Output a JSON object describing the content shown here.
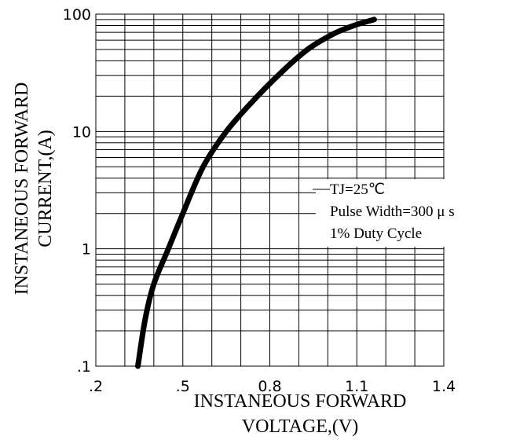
{
  "chart_data": {
    "type": "line",
    "x_scale": "linear",
    "y_scale": "log",
    "xlim": [
      0.2,
      1.4
    ],
    "ylim": [
      0.1,
      100
    ],
    "grid": true,
    "xlabel": [
      "INSTANEOUS FORWARD",
      "VOLTAGE,(V)"
    ],
    "ylabel": [
      "INSTANEOUS FORWARD",
      "CURRENT,(A)"
    ],
    "x_tick_labels": [
      {
        "value": 0.2,
        "label": ".2"
      },
      {
        "value": 0.5,
        "label": ".5"
      },
      {
        "value": 0.8,
        "label": "0.8"
      },
      {
        "value": 1.1,
        "label": "1.1"
      },
      {
        "value": 1.4,
        "label": "1.4"
      }
    ],
    "y_tick_labels": [
      {
        "value": 0.1,
        "label": ".1"
      },
      {
        "value": 1,
        "label": "1"
      },
      {
        "value": 10,
        "label": "10"
      },
      {
        "value": 100,
        "label": "100"
      }
    ],
    "annotations": [
      "TJ=25℃",
      "Pulse Width=300 μ s",
      "1% Duty Cycle"
    ],
    "series": [
      {
        "color": "#000000",
        "points": [
          [
            0.345,
            0.1
          ],
          [
            0.37,
            0.25
          ],
          [
            0.4,
            0.5
          ],
          [
            0.45,
            1.0
          ],
          [
            0.5,
            2.0
          ],
          [
            0.57,
            5.0
          ],
          [
            0.65,
            10
          ],
          [
            0.74,
            18
          ],
          [
            0.84,
            32
          ],
          [
            0.93,
            50
          ],
          [
            1.02,
            68
          ],
          [
            1.09,
            80
          ],
          [
            1.16,
            90
          ]
        ]
      }
    ]
  }
}
